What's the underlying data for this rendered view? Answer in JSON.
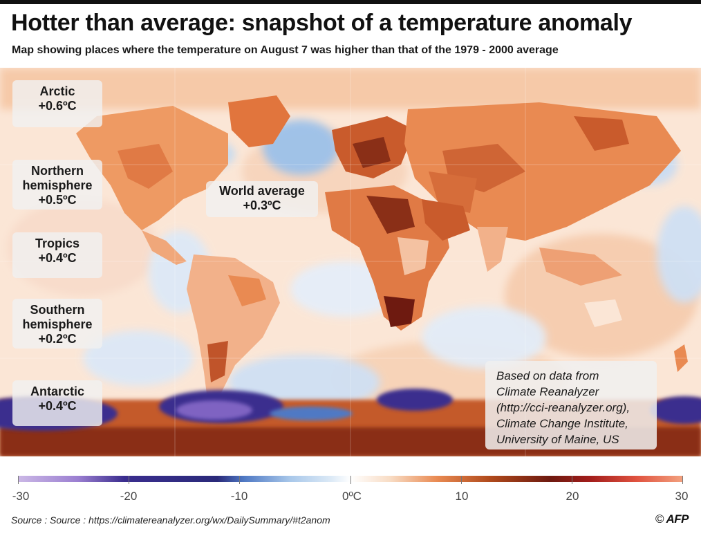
{
  "title": "Hotter than average: snapshot of a temperature anomaly",
  "subtitle": "Map showing places where the temperature on August 7 was higher than that of the 1979 - 2000 average",
  "regions": [
    {
      "label": "Arctic",
      "value": "+0.6ºC"
    },
    {
      "label": "Northern hemisphere",
      "value": "+0.5ºC"
    },
    {
      "label": "Tropics",
      "value": "+0.4ºC"
    },
    {
      "label": "Southern hemisphere",
      "value": "+0.2ºC"
    },
    {
      "label": "Antarctic",
      "value": "+0.4ºC"
    }
  ],
  "world_average": {
    "label": "World average",
    "value": "+0.3ºC"
  },
  "source_box": {
    "line1": "Based on data from",
    "line2": "Climate Reanalyzer",
    "line3": "(http://cci-reanalyzer.org),",
    "line4": "Climate Change Institute,",
    "line5": "University of Maine, US"
  },
  "legend": {
    "ticks": [
      "-30",
      "-20",
      "-10",
      "0ºC",
      "10",
      "20",
      "30"
    ],
    "colors": {
      "cold_extreme": "#3a2d8e",
      "cold": "#a9c8ea",
      "neutral": "#ffffff",
      "warm": "#e98a52",
      "hot_extreme": "#6e1a10"
    }
  },
  "footer": {
    "source": "Source : Source : https://climatereanalyzer.org/wx/DailySummary/#t2anom",
    "copyright_symbol": "©",
    "brand": "AFP"
  }
}
